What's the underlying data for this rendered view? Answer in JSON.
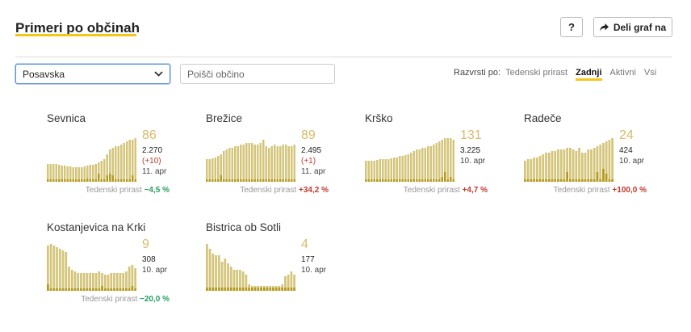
{
  "header": {
    "title": "Primeri po občinah",
    "help_label": "?",
    "share_label": "Deli graf na"
  },
  "filters": {
    "region_selected": "Posavska",
    "search_placeholder": "Poišči občino"
  },
  "sort": {
    "label": "Razvrsti po:",
    "options": [
      "Tedenski prirast",
      "Zadnji",
      "Aktivni",
      "Vsi"
    ],
    "active": "Zadnji"
  },
  "weekly_label": "Tedenski prirast",
  "colors": {
    "accent": "#f5c518",
    "bar": "#d4c57a",
    "bar_dark": "#b59a1e",
    "up": "#c0392b",
    "down": "#27a060"
  },
  "municipalities": [
    {
      "name": "Sevnica",
      "current": "86",
      "total": "2.270",
      "delta": "(+10)",
      "date": "11. apr",
      "weekly_change": "−4,5 %",
      "weekly_dir": "down",
      "bars": [
        22,
        22,
        22,
        22,
        21,
        20,
        20,
        19,
        19,
        18,
        18,
        18,
        18,
        19,
        20,
        21,
        21,
        22,
        24,
        26,
        28,
        34,
        40,
        42,
        44,
        44,
        46,
        48,
        50,
        52,
        52,
        54
      ],
      "dark": [
        3,
        3,
        3,
        3,
        3,
        3,
        3,
        3,
        3,
        3,
        3,
        3,
        3,
        3,
        4,
        3,
        3,
        3,
        10,
        3,
        3,
        8,
        10,
        8,
        3,
        3,
        3,
        3,
        3,
        3,
        8,
        3
      ]
    },
    {
      "name": "Brežice",
      "current": "89",
      "total": "2.495",
      "delta": "(+1)",
      "date": "11. apr",
      "weekly_change": "+34,2 %",
      "weekly_dir": "up",
      "bars": [
        28,
        28,
        29,
        30,
        32,
        34,
        38,
        40,
        42,
        42,
        44,
        44,
        46,
        46,
        48,
        48,
        48,
        46,
        46,
        48,
        52,
        44,
        42,
        44,
        46,
        44,
        44,
        46,
        46,
        44,
        44,
        46
      ],
      "dark": [
        3,
        3,
        3,
        3,
        3,
        8,
        3,
        3,
        3,
        3,
        3,
        3,
        3,
        3,
        3,
        3,
        3,
        3,
        3,
        3,
        3,
        3,
        3,
        3,
        3,
        3,
        3,
        3,
        3,
        3,
        3,
        3
      ]
    },
    {
      "name": "Krško",
      "current": "131",
      "total": "3.225",
      "delta": "",
      "date": "10. apr",
      "weekly_change": "+4,7 %",
      "weekly_dir": "up",
      "bars": [
        26,
        26,
        26,
        26,
        27,
        28,
        28,
        28,
        28,
        29,
        30,
        30,
        32,
        32,
        33,
        34,
        36,
        38,
        40,
        40,
        42,
        42,
        44,
        44,
        46,
        48,
        50,
        52,
        54,
        54,
        54,
        52
      ],
      "dark": [
        3,
        3,
        3,
        3,
        3,
        3,
        3,
        3,
        3,
        3,
        3,
        3,
        3,
        3,
        3,
        3,
        3,
        3,
        3,
        3,
        3,
        3,
        3,
        3,
        3,
        3,
        3,
        6,
        12,
        3,
        6,
        3
      ]
    },
    {
      "name": "Radeče",
      "current": "24",
      "total": "424",
      "delta": "",
      "date": "10. apr",
      "weekly_change": "+100,0 %",
      "weekly_dir": "up",
      "bars": [
        26,
        28,
        28,
        30,
        30,
        32,
        34,
        36,
        36,
        38,
        38,
        40,
        40,
        40,
        42,
        42,
        40,
        38,
        42,
        36,
        36,
        40,
        40,
        42,
        44,
        46,
        48,
        50,
        52,
        54
      ],
      "dark": [
        3,
        3,
        3,
        3,
        3,
        3,
        3,
        3,
        3,
        3,
        3,
        3,
        3,
        3,
        12,
        3,
        3,
        3,
        3,
        3,
        3,
        3,
        3,
        3,
        12,
        3,
        16,
        10,
        3,
        3
      ]
    },
    {
      "name": "Kostanjevica na Krki",
      "current": "9",
      "total": "308",
      "delta": "",
      "date": "10. apr",
      "weekly_change": "−20,0 %",
      "weekly_dir": "down",
      "bars": [
        56,
        58,
        56,
        54,
        52,
        50,
        48,
        30,
        26,
        24,
        22,
        22,
        22,
        22,
        22,
        22,
        22,
        24,
        22,
        20,
        20,
        22,
        22,
        22,
        22,
        22,
        24,
        30,
        32,
        28
      ],
      "dark": [
        8,
        3,
        3,
        3,
        3,
        3,
        3,
        3,
        3,
        3,
        3,
        3,
        3,
        3,
        3,
        3,
        3,
        3,
        6,
        3,
        3,
        3,
        3,
        3,
        3,
        3,
        3,
        3,
        6,
        3
      ]
    },
    {
      "name": "Bistrica ob Sotli",
      "current": "4",
      "total": "177",
      "delta": "",
      "date": "10. apr",
      "weekly_change": "",
      "weekly_dir": "none",
      "bars": [
        58,
        52,
        46,
        44,
        44,
        36,
        40,
        34,
        30,
        26,
        26,
        26,
        24,
        20,
        8,
        6,
        6,
        6,
        6,
        6,
        6,
        6,
        6,
        6,
        6,
        8,
        18,
        20,
        24,
        20
      ],
      "dark": [
        4,
        4,
        4,
        4,
        4,
        4,
        4,
        4,
        4,
        4,
        4,
        4,
        4,
        4,
        4,
        4,
        4,
        4,
        4,
        4,
        4,
        4,
        4,
        4,
        4,
        4,
        4,
        4,
        4,
        4
      ]
    }
  ]
}
